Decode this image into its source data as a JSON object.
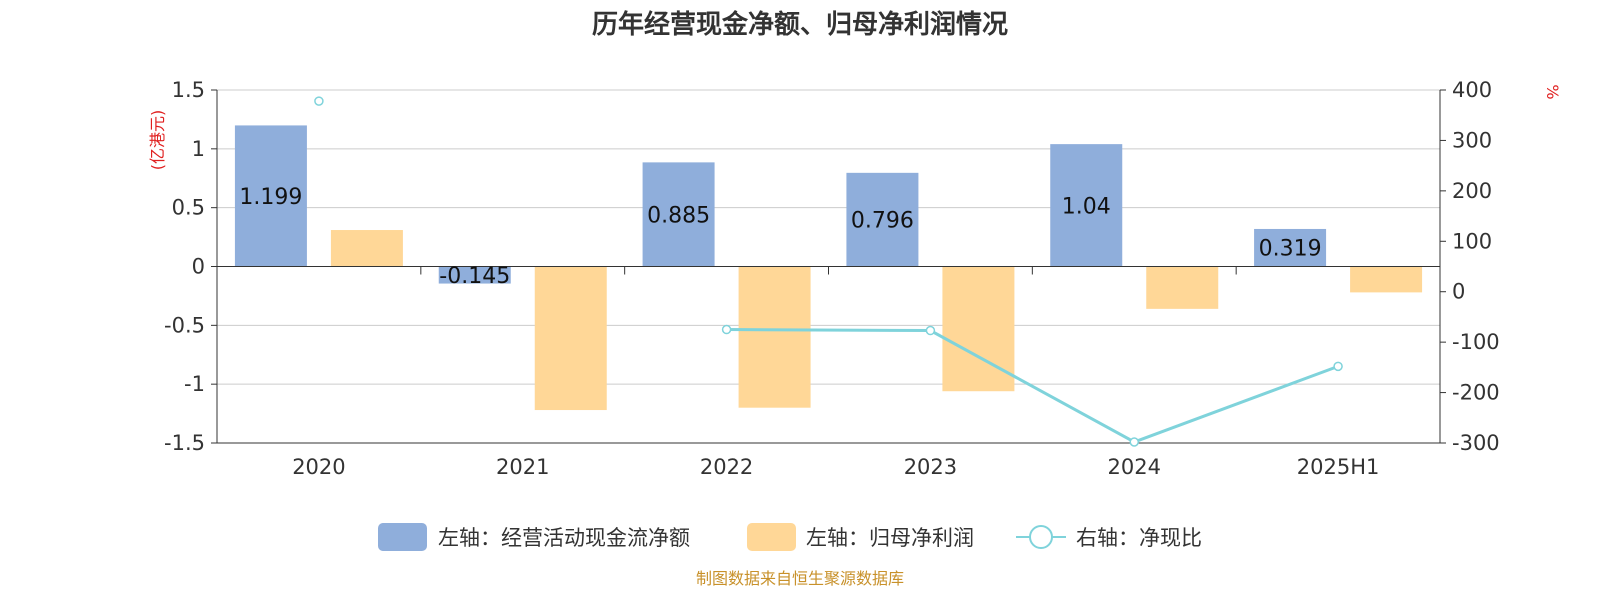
{
  "chart_data": {
    "type": "bar",
    "title": "历年经营现金净额、归母净利润情况",
    "categories": [
      "2020",
      "2021",
      "2022",
      "2023",
      "2024",
      "2025H1"
    ],
    "series": [
      {
        "name": "左轴：经营活动现金流净额",
        "type": "bar",
        "axis": "left",
        "color": "#8FAEDB",
        "values": [
          1.199,
          -0.145,
          0.885,
          0.796,
          1.04,
          0.319
        ],
        "labels": [
          "1.199",
          "-0.145",
          "0.885",
          "0.796",
          "1.04",
          "0.319"
        ]
      },
      {
        "name": "左轴：归母净利润",
        "type": "bar",
        "axis": "left",
        "color": "#FFD797",
        "values": [
          0.31,
          -1.22,
          -1.2,
          -1.06,
          -0.36,
          -0.22
        ]
      },
      {
        "name": "右轴：净现比",
        "type": "line",
        "axis": "right",
        "color": "#7FD3DB",
        "values": [
          378,
          null,
          -75,
          -77,
          -298,
          -148
        ]
      }
    ],
    "y_left": {
      "unit": "(亿港元)",
      "ylim": [
        -1.5,
        1.5
      ],
      "ticks": [
        1.5,
        1,
        0.5,
        0,
        -0.5,
        -1,
        -1.5
      ],
      "tick_labels": [
        "1.5",
        "1",
        "0.5",
        "0",
        "-0.5",
        "-1",
        "-1.5"
      ]
    },
    "y_right": {
      "unit": "%",
      "ylim": [
        -300,
        400
      ],
      "ticks": [
        400,
        300,
        200,
        100,
        0,
        -100,
        -200,
        -300
      ],
      "tick_labels": [
        "400",
        "300",
        "200",
        "100",
        "0",
        "-100",
        "-200",
        "-300"
      ]
    },
    "grid": true,
    "legend_position": "bottom",
    "source": "制图数据来自恒生聚源数据库",
    "colors": {
      "unit": "#E02020",
      "source": "#C8912A",
      "axis": "#333333",
      "grid": "#CCCCCC"
    }
  }
}
